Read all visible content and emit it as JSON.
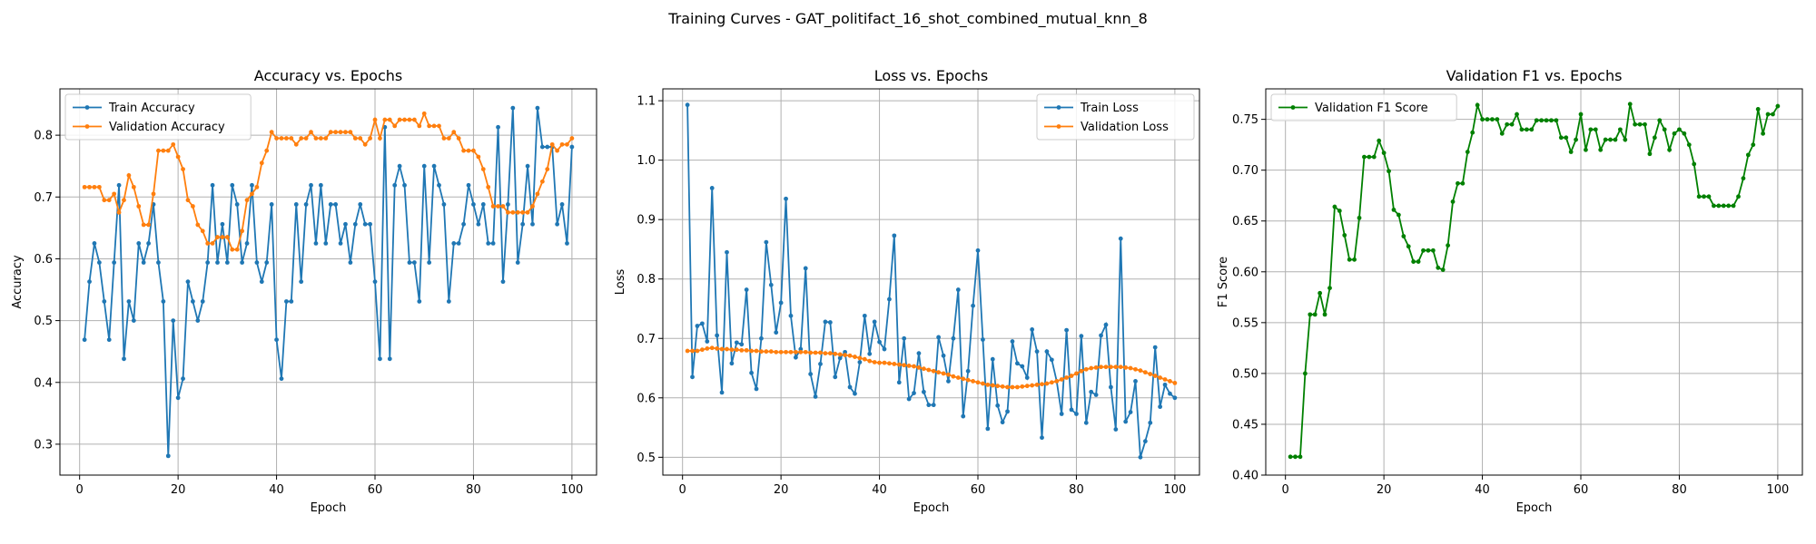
{
  "figure": {
    "suptitle": "Training Curves - GAT_politifact_16_shot_combined_mutual_knn_8"
  },
  "chart_data": [
    {
      "type": "line",
      "title": "Accuracy vs. Epochs",
      "xlabel": "Epoch",
      "ylabel": "Accuracy",
      "xlim": [
        -4,
        105
      ],
      "ylim": [
        0.25,
        0.875
      ],
      "xticks": [
        0,
        20,
        40,
        60,
        80,
        100
      ],
      "yticks": [
        0.3,
        0.4,
        0.5,
        0.6,
        0.7,
        0.8
      ],
      "ytick_decimals": 1,
      "grid": true,
      "legend": "top-left",
      "x_start": 1,
      "series": [
        {
          "name": "Train Accuracy",
          "color": "#1f77b4",
          "values": [
            0.469,
            0.563,
            0.625,
            0.594,
            0.531,
            0.469,
            0.594,
            0.719,
            0.438,
            0.531,
            0.5,
            0.625,
            0.594,
            0.625,
            0.688,
            0.594,
            0.531,
            0.281,
            0.5,
            0.375,
            0.406,
            0.563,
            0.531,
            0.5,
            0.531,
            0.594,
            0.719,
            0.594,
            0.656,
            0.594,
            0.719,
            0.688,
            0.594,
            0.625,
            0.719,
            0.594,
            0.563,
            0.594,
            0.688,
            0.469,
            0.406,
            0.531,
            0.531,
            0.688,
            0.563,
            0.688,
            0.719,
            0.625,
            0.719,
            0.625,
            0.688,
            0.688,
            0.625,
            0.656,
            0.594,
            0.656,
            0.688,
            0.656,
            0.656,
            0.563,
            0.438,
            0.813,
            0.438,
            0.719,
            0.75,
            0.719,
            0.594,
            0.594,
            0.531,
            0.75,
            0.594,
            0.75,
            0.719,
            0.688,
            0.531,
            0.625,
            0.625,
            0.656,
            0.719,
            0.688,
            0.656,
            0.688,
            0.625,
            0.625,
            0.813,
            0.563,
            0.688,
            0.844,
            0.594,
            0.656,
            0.75,
            0.656,
            0.844,
            0.781,
            0.781,
            0.781,
            0.656,
            0.688,
            0.625,
            0.781
          ]
        },
        {
          "name": "Validation Accuracy",
          "color": "#ff7f0e",
          "values": [
            0.716,
            0.716,
            0.716,
            0.716,
            0.695,
            0.695,
            0.705,
            0.675,
            0.695,
            0.735,
            0.716,
            0.685,
            0.655,
            0.655,
            0.705,
            0.775,
            0.775,
            0.775,
            0.785,
            0.765,
            0.745,
            0.695,
            0.685,
            0.655,
            0.645,
            0.625,
            0.625,
            0.635,
            0.635,
            0.635,
            0.615,
            0.615,
            0.645,
            0.695,
            0.705,
            0.716,
            0.755,
            0.775,
            0.805,
            0.795,
            0.795,
            0.795,
            0.795,
            0.785,
            0.795,
            0.795,
            0.805,
            0.795,
            0.795,
            0.795,
            0.805,
            0.805,
            0.805,
            0.805,
            0.805,
            0.795,
            0.795,
            0.785,
            0.795,
            0.825,
            0.795,
            0.825,
            0.825,
            0.815,
            0.825,
            0.825,
            0.825,
            0.825,
            0.815,
            0.835,
            0.815,
            0.815,
            0.815,
            0.795,
            0.795,
            0.805,
            0.795,
            0.775,
            0.775,
            0.775,
            0.765,
            0.745,
            0.716,
            0.685,
            0.685,
            0.685,
            0.675,
            0.675,
            0.675,
            0.675,
            0.675,
            0.685,
            0.705,
            0.725,
            0.745,
            0.785,
            0.775,
            0.785,
            0.785,
            0.795
          ]
        }
      ]
    },
    {
      "type": "line",
      "title": "Loss vs. Epochs",
      "xlabel": "Epoch",
      "ylabel": "Loss",
      "xlim": [
        -4,
        105
      ],
      "ylim": [
        0.47,
        1.12
      ],
      "xticks": [
        0,
        20,
        40,
        60,
        80,
        100
      ],
      "yticks": [
        0.5,
        0.6,
        0.7,
        0.8,
        0.9,
        1.0,
        1.1
      ],
      "ytick_decimals": 1,
      "grid": true,
      "legend": "top-right",
      "x_start": 1,
      "series": [
        {
          "name": "Train Loss",
          "color": "#1f77b4",
          "values": [
            1.093,
            0.635,
            0.721,
            0.725,
            0.695,
            0.953,
            0.705,
            0.609,
            0.845,
            0.658,
            0.693,
            0.69,
            0.782,
            0.642,
            0.615,
            0.7,
            0.862,
            0.79,
            0.71,
            0.76,
            0.935,
            0.738,
            0.668,
            0.682,
            0.818,
            0.64,
            0.602,
            0.657,
            0.728,
            0.727,
            0.635,
            0.667,
            0.677,
            0.618,
            0.607,
            0.66,
            0.738,
            0.674,
            0.728,
            0.694,
            0.682,
            0.766,
            0.873,
            0.626,
            0.7,
            0.598,
            0.608,
            0.675,
            0.61,
            0.588,
            0.588,
            0.702,
            0.671,
            0.628,
            0.7,
            0.782,
            0.569,
            0.645,
            0.755,
            0.848,
            0.698,
            0.548,
            0.665,
            0.587,
            0.559,
            0.577,
            0.695,
            0.658,
            0.653,
            0.634,
            0.715,
            0.678,
            0.533,
            0.678,
            0.664,
            0.628,
            0.573,
            0.714,
            0.58,
            0.573,
            0.704,
            0.558,
            0.61,
            0.605,
            0.705,
            0.723,
            0.618,
            0.547,
            0.868,
            0.56,
            0.576,
            0.628,
            0.5,
            0.527,
            0.558,
            0.685,
            0.585,
            0.622,
            0.607,
            0.6
          ]
        },
        {
          "name": "Validation Loss",
          "color": "#ff7f0e",
          "values": [
            0.679,
            0.679,
            0.679,
            0.681,
            0.683,
            0.684,
            0.683,
            0.682,
            0.682,
            0.681,
            0.681,
            0.68,
            0.68,
            0.679,
            0.679,
            0.678,
            0.678,
            0.678,
            0.677,
            0.677,
            0.677,
            0.677,
            0.677,
            0.677,
            0.677,
            0.676,
            0.676,
            0.676,
            0.675,
            0.675,
            0.674,
            0.673,
            0.672,
            0.671,
            0.669,
            0.667,
            0.665,
            0.662,
            0.66,
            0.659,
            0.659,
            0.658,
            0.657,
            0.656,
            0.655,
            0.654,
            0.653,
            0.651,
            0.649,
            0.647,
            0.645,
            0.643,
            0.641,
            0.639,
            0.636,
            0.634,
            0.632,
            0.63,
            0.628,
            0.626,
            0.624,
            0.622,
            0.621,
            0.62,
            0.619,
            0.618,
            0.618,
            0.618,
            0.619,
            0.62,
            0.621,
            0.622,
            0.623,
            0.624,
            0.626,
            0.628,
            0.631,
            0.634,
            0.637,
            0.641,
            0.645,
            0.648,
            0.65,
            0.651,
            0.652,
            0.652,
            0.652,
            0.652,
            0.652,
            0.651,
            0.65,
            0.648,
            0.646,
            0.643,
            0.64,
            0.637,
            0.634,
            0.631,
            0.628,
            0.625
          ]
        }
      ]
    },
    {
      "type": "line",
      "title": "Validation F1 vs. Epochs",
      "xlabel": "Epoch",
      "ylabel": "F1 Score",
      "xlim": [
        -4,
        105
      ],
      "ylim": [
        0.4,
        0.78
      ],
      "xticks": [
        0,
        20,
        40,
        60,
        80,
        100
      ],
      "yticks": [
        0.4,
        0.45,
        0.5,
        0.55,
        0.6,
        0.65,
        0.7,
        0.75
      ],
      "ytick_decimals": 2,
      "grid": true,
      "legend": "top-left",
      "x_start": 1,
      "series": [
        {
          "name": "Validation F1 Score",
          "color": "#008000",
          "values": [
            0.418,
            0.418,
            0.418,
            0.5,
            0.558,
            0.558,
            0.579,
            0.558,
            0.584,
            0.664,
            0.66,
            0.636,
            0.612,
            0.612,
            0.653,
            0.713,
            0.713,
            0.713,
            0.729,
            0.717,
            0.699,
            0.661,
            0.656,
            0.635,
            0.625,
            0.61,
            0.61,
            0.621,
            0.621,
            0.621,
            0.604,
            0.602,
            0.626,
            0.669,
            0.687,
            0.687,
            0.718,
            0.737,
            0.764,
            0.75,
            0.75,
            0.75,
            0.75,
            0.736,
            0.745,
            0.745,
            0.755,
            0.74,
            0.74,
            0.74,
            0.749,
            0.749,
            0.749,
            0.749,
            0.749,
            0.732,
            0.732,
            0.718,
            0.73,
            0.755,
            0.72,
            0.74,
            0.74,
            0.72,
            0.73,
            0.73,
            0.73,
            0.74,
            0.73,
            0.765,
            0.745,
            0.745,
            0.745,
            0.716,
            0.732,
            0.749,
            0.74,
            0.72,
            0.736,
            0.74,
            0.736,
            0.725,
            0.706,
            0.674,
            0.674,
            0.674,
            0.665,
            0.665,
            0.665,
            0.665,
            0.665,
            0.674,
            0.692,
            0.715,
            0.725,
            0.76,
            0.736,
            0.755,
            0.755,
            0.763
          ]
        }
      ]
    }
  ]
}
